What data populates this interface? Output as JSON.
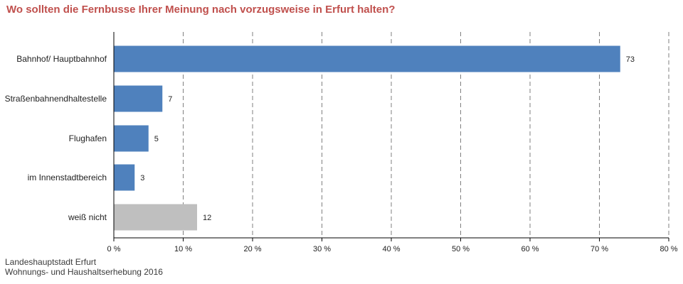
{
  "title": "Wo sollten die Fernbusse Ihrer Meinung nach vorzugsweise in Erfurt halten?",
  "source": {
    "line1": "Landeshauptstadt Erfurt",
    "line2": "Wohnungs- und Haushaltserhebung 2016"
  },
  "chart_data": {
    "type": "bar",
    "orientation": "horizontal",
    "title": "Wo sollten die Fernbusse Ihrer Meinung nach vorzugsweise in Erfurt halten?",
    "categories": [
      "Bahnhof/ Hauptbahnhof",
      "Straßenbahnendhaltestelle",
      "Flughafen",
      "im Innenstadtbereich",
      "weiß nicht"
    ],
    "values": [
      73,
      7,
      5,
      3,
      12
    ],
    "bar_colors": [
      "#4f81bd",
      "#4f81bd",
      "#4f81bd",
      "#4f81bd",
      "#bfbfbf"
    ],
    "xlim": [
      0,
      80
    ],
    "x_ticks": [
      0,
      10,
      20,
      30,
      40,
      50,
      60,
      70,
      80
    ],
    "x_tick_labels": [
      "0 %",
      "10 %",
      "20 %",
      "30 %",
      "40 %",
      "50 %",
      "60 %",
      "70 %",
      "80 %"
    ],
    "xlabel": "",
    "ylabel": "",
    "grid": "vertical dashed",
    "legend": "none"
  },
  "colors": {
    "title": "#c0504d",
    "bar_primary": "#4f81bd",
    "bar_secondary": "#bfbfbf",
    "grid": "#7f7f7f"
  }
}
